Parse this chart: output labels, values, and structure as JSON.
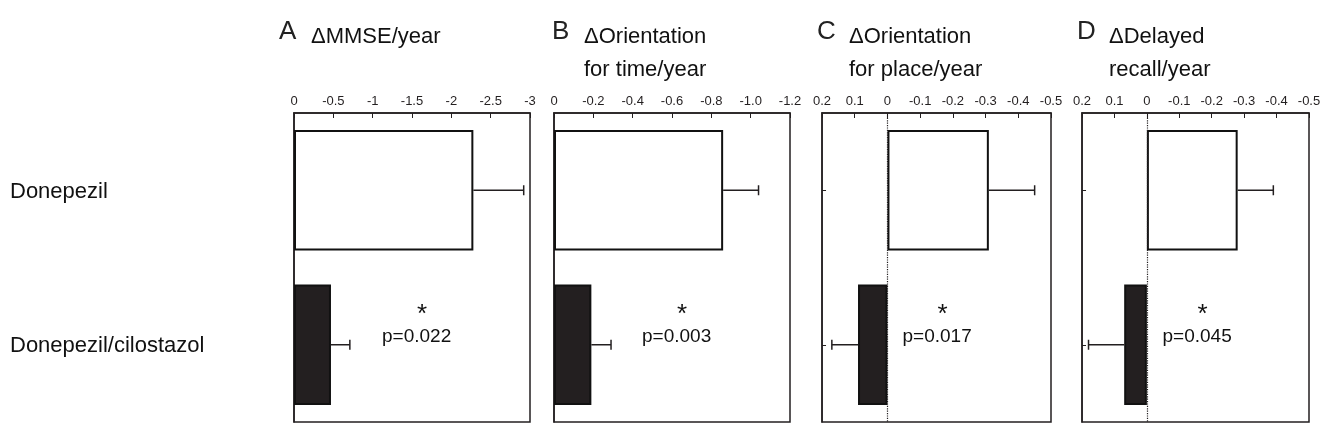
{
  "chart_data": [
    {
      "type": "bar",
      "orientation": "horizontal",
      "title": "A",
      "subtitle": "ΔMMSE/year",
      "categories": [
        "Donepezil",
        "Donepezil/cilostazol"
      ],
      "values": [
        -2.28,
        -0.47
      ],
      "colors": [
        "#ffffff",
        "#231f20"
      ],
      "errors": [
        [
          -2.92,
          -2.28
        ],
        [
          -0.71,
          -0.47
        ]
      ],
      "xlim": [
        0,
        -3
      ],
      "xticks": [
        0,
        -0.5,
        -1,
        -1.5,
        -2,
        -2.5,
        -3
      ],
      "grid": false,
      "annotations": [
        "*",
        "p=0.022"
      ]
    },
    {
      "type": "bar",
      "orientation": "horizontal",
      "title": "B",
      "subtitle": "ΔOrientation for time/year",
      "categories": [
        null,
        null
      ],
      "values": [
        -0.86,
        -0.19
      ],
      "colors": [
        "#ffffff",
        "#231f20"
      ],
      "errors": [
        [
          -1.04,
          -0.86
        ],
        [
          -0.29,
          -0.19
        ]
      ],
      "xlim": [
        0,
        -1.2
      ],
      "xticks": [
        0,
        -0.2,
        -0.4,
        -0.6,
        -0.8,
        {
          "value": -1,
          "label": "-1.0"
        },
        -1.2
      ],
      "grid": false,
      "tick_labels": "x",
      "annotations": [
        "*",
        "p=0.003"
      ]
    },
    {
      "type": "bar",
      "orientation": "horizontal",
      "title": "C",
      "subtitle": "ΔOrientation for place/year",
      "categories": [
        null,
        null
      ],
      "values": [
        -0.31,
        0.09
      ],
      "colors": [
        "#ffffff",
        "#231f20"
      ],
      "errors": [
        [
          -0.45,
          -0.31
        ],
        [
          0.09,
          0.17
        ]
      ],
      "xlim": [
        0.2,
        -0.5
      ],
      "xticks": [
        0.2,
        0.1,
        0,
        -0.1,
        -0.2,
        -0.3,
        -0.4,
        -0.5
      ],
      "grid": false,
      "tick_labels": "x",
      "ref_lines": [
        {
          "axis": "x",
          "value": 0,
          "label": null,
          "line_style": "dotted"
        }
      ],
      "annotations": [
        "*",
        "p=0.017"
      ]
    },
    {
      "type": "bar",
      "orientation": "horizontal",
      "title": "D",
      "subtitle": "ΔDelayed recall/year",
      "categories": [
        null,
        null
      ],
      "values": [
        -0.28,
        0.07
      ],
      "colors": [
        "#ffffff",
        "#231f20"
      ],
      "errors": [
        [
          -0.39,
          -0.28
        ],
        [
          0.07,
          0.18
        ]
      ],
      "xlim": [
        0.2,
        -0.5
      ],
      "xticks": [
        0.2,
        0.1,
        0,
        -0.1,
        -0.2,
        -0.3,
        -0.4,
        -0.5
      ],
      "grid": false,
      "tick_labels": "x",
      "ref_lines": [
        {
          "axis": "x",
          "value": 0,
          "label": null,
          "line_style": "dotted"
        }
      ],
      "annotations": [
        "*",
        "p=0.045"
      ]
    }
  ]
}
